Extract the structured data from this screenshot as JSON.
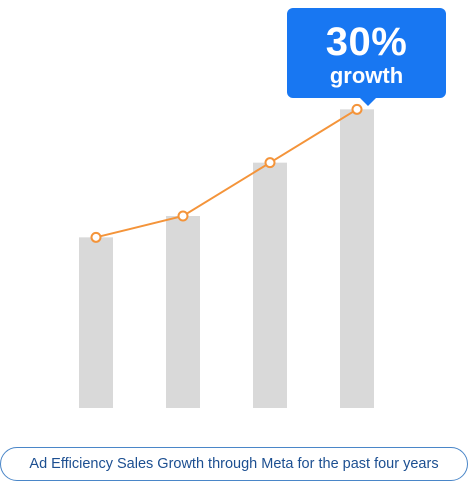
{
  "chart_data": {
    "type": "bar",
    "categories": [
      "",
      "",
      "",
      ""
    ],
    "values": [
      160,
      180,
      230,
      280
    ],
    "line_values": [
      160,
      180,
      230,
      280
    ],
    "ylim": [
      0,
      300
    ],
    "grid": false,
    "title": "",
    "xlabel": "",
    "ylabel": ""
  },
  "callout": {
    "value": "30%",
    "label": "growth"
  },
  "caption": "Ad Efficiency Sales Growth through Meta for the past four years",
  "colors": {
    "bar": "#d9d9d9",
    "line": "#f4943a",
    "marker_fill": "#ffffff",
    "callout_bg": "#1877f2",
    "caption_border": "#4a86c8",
    "caption_text": "#1c4f91"
  }
}
